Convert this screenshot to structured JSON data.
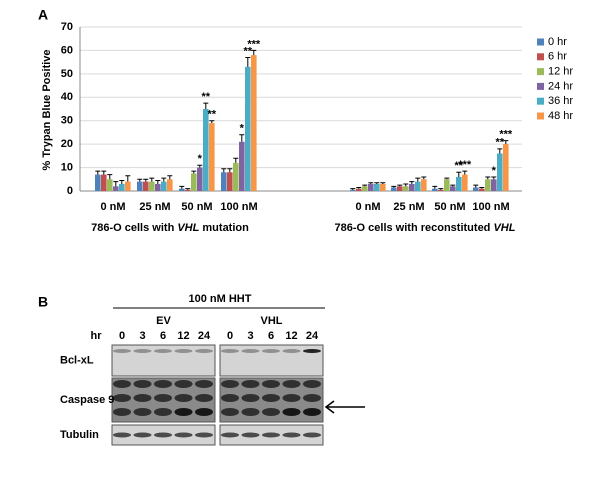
{
  "chart_data": {
    "type": "bar",
    "panel_label": "A",
    "ylabel": "% Trypan Blue Positive",
    "ylim": [
      0,
      70
    ],
    "yticks": [
      0,
      10,
      20,
      30,
      40,
      50,
      60,
      70
    ],
    "grid": true,
    "legend": "right",
    "categories": [
      "0 nM",
      "25 nM",
      "50 nM",
      "100 nM",
      "0 nM",
      "25 nM",
      "50 nM",
      "100 nM"
    ],
    "groups": [
      {
        "label": [
          "786-O cells with ",
          "VHL",
          " mutation"
        ]
      },
      {
        "label": [
          "786-O cells with reconstituted ",
          "VHL"
        ]
      }
    ],
    "series": [
      {
        "name": "0 hr",
        "color": "#4f81bd",
        "values": [
          7,
          4,
          1,
          8,
          0.5,
          1.5,
          1,
          1.5
        ],
        "errors": [
          1.5,
          1,
          1,
          1.5,
          0.5,
          0.5,
          1,
          1
        ],
        "significance": [
          null,
          null,
          null,
          null,
          null,
          null,
          null,
          null
        ]
      },
      {
        "name": "6 hr",
        "color": "#c0504d",
        "values": [
          7,
          4,
          0.5,
          8,
          1,
          2,
          0.5,
          1
        ],
        "errors": [
          1.5,
          1,
          0.5,
          1.5,
          0.5,
          0.5,
          0.5,
          0.5
        ],
        "significance": [
          null,
          null,
          null,
          null,
          null,
          null,
          null,
          null
        ]
      },
      {
        "name": "12 hr",
        "color": "#9bbb59",
        "values": [
          5,
          4,
          7.5,
          12,
          2,
          2,
          5,
          5
        ],
        "errors": [
          2,
          1.5,
          1,
          2,
          0.5,
          1,
          0.5,
          1
        ],
        "significance": [
          null,
          null,
          null,
          null,
          null,
          null,
          null,
          null
        ]
      },
      {
        "name": "24 hr",
        "color": "#8064a2",
        "values": [
          2,
          3,
          10,
          21,
          3,
          3,
          2,
          5
        ],
        "errors": [
          2,
          1.5,
          1,
          3,
          0.5,
          1,
          0.5,
          1
        ],
        "significance": [
          null,
          null,
          "*",
          "*",
          null,
          null,
          null,
          "*"
        ]
      },
      {
        "name": "36 hr",
        "color": "#4bacc6",
        "values": [
          3,
          4,
          35,
          53,
          3,
          4,
          6,
          16
        ],
        "errors": [
          1.5,
          1.5,
          2.5,
          4,
          0.5,
          1.5,
          2,
          2
        ],
        "significance": [
          null,
          null,
          "**",
          "**",
          null,
          null,
          "**",
          "**"
        ]
      },
      {
        "name": "48 hr",
        "color": "#f79646",
        "values": [
          4,
          5,
          29,
          58,
          3,
          5,
          7,
          20
        ],
        "errors": [
          2.5,
          1.5,
          1,
          2,
          0.5,
          1,
          1.5,
          1.5
        ],
        "significance": [
          null,
          null,
          "**",
          "***",
          null,
          null,
          "***",
          "***"
        ]
      }
    ]
  },
  "blot": {
    "panel_label": "B",
    "treatment": "100 nM HHT",
    "conditions": [
      {
        "name": "EV",
        "color": "#2db14b"
      },
      {
        "name": "VHL",
        "color": "#e8262a"
      }
    ],
    "time_label": "hr",
    "times": [
      "0",
      "3",
      "6",
      "12",
      "24"
    ],
    "rows": [
      "Bcl-xL",
      "Caspase 9",
      "Tubulin"
    ]
  }
}
